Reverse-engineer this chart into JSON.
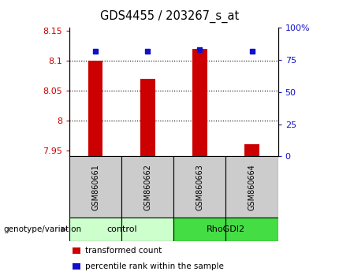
{
  "title": "GDS4455 / 203267_s_at",
  "samples": [
    "GSM860661",
    "GSM860662",
    "GSM860663",
    "GSM860664"
  ],
  "groups": [
    "control",
    "control",
    "RhoGDI2",
    "RhoGDI2"
  ],
  "transformed_counts": [
    8.1,
    8.07,
    8.12,
    7.96
  ],
  "percentile_ranks": [
    82,
    82,
    83,
    82
  ],
  "ylim_left": [
    7.94,
    8.155
  ],
  "ylim_right": [
    0,
    100
  ],
  "yticks_left": [
    7.95,
    8.0,
    8.05,
    8.1,
    8.15
  ],
  "ytick_labels_left": [
    "7.95",
    "8",
    "8.05",
    "8.1",
    "8.15"
  ],
  "yticks_right": [
    0,
    25,
    50,
    75,
    100
  ],
  "ytick_labels_right": [
    "0",
    "25",
    "50",
    "75",
    "100%"
  ],
  "bar_color": "#cc0000",
  "dot_color": "#1111cc",
  "bar_width": 0.28,
  "baseline": 7.94,
  "group_colors": {
    "control": "#ccffcc",
    "RhoGDI2": "#44dd44"
  },
  "legend_items": [
    {
      "label": "transformed count",
      "color": "#cc0000"
    },
    {
      "label": "percentile rank within the sample",
      "color": "#1111cc"
    }
  ],
  "xlabel_text": "genotype/variation",
  "sample_box_color": "#cccccc",
  "title_fontsize": 10.5,
  "tick_fontsize": 8,
  "label_fontsize": 8,
  "sample_fontsize": 7
}
